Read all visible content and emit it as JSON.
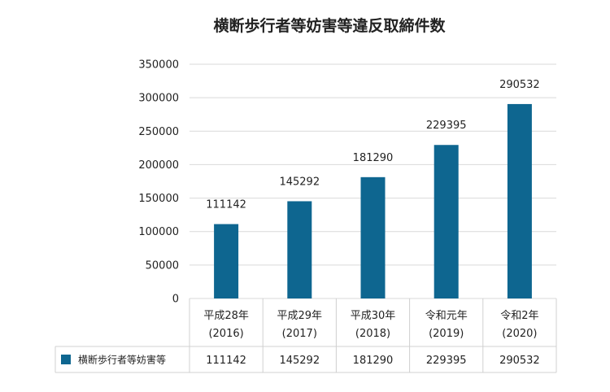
{
  "chart_data": {
    "type": "bar",
    "title": "横断歩行者等妨害等違反取締件数",
    "categories": [
      [
        "平成28年",
        "(2016)"
      ],
      [
        "平成29年",
        "(2017)"
      ],
      [
        "平成30年",
        "(2018)"
      ],
      [
        "令和元年",
        "(2019)"
      ],
      [
        "令和2年",
        "(2020)"
      ]
    ],
    "series": [
      {
        "name": "横断歩行者等妨害等",
        "values": [
          111142,
          145292,
          181290,
          229395,
          290532
        ],
        "color": "#0e6690"
      }
    ],
    "ylim": [
      0,
      350000
    ],
    "yticks": [
      "0",
      "50000",
      "100000",
      "150000",
      "200000",
      "250000",
      "300000",
      "350000"
    ],
    "grid": true,
    "data_labels": true,
    "data_table": true
  }
}
